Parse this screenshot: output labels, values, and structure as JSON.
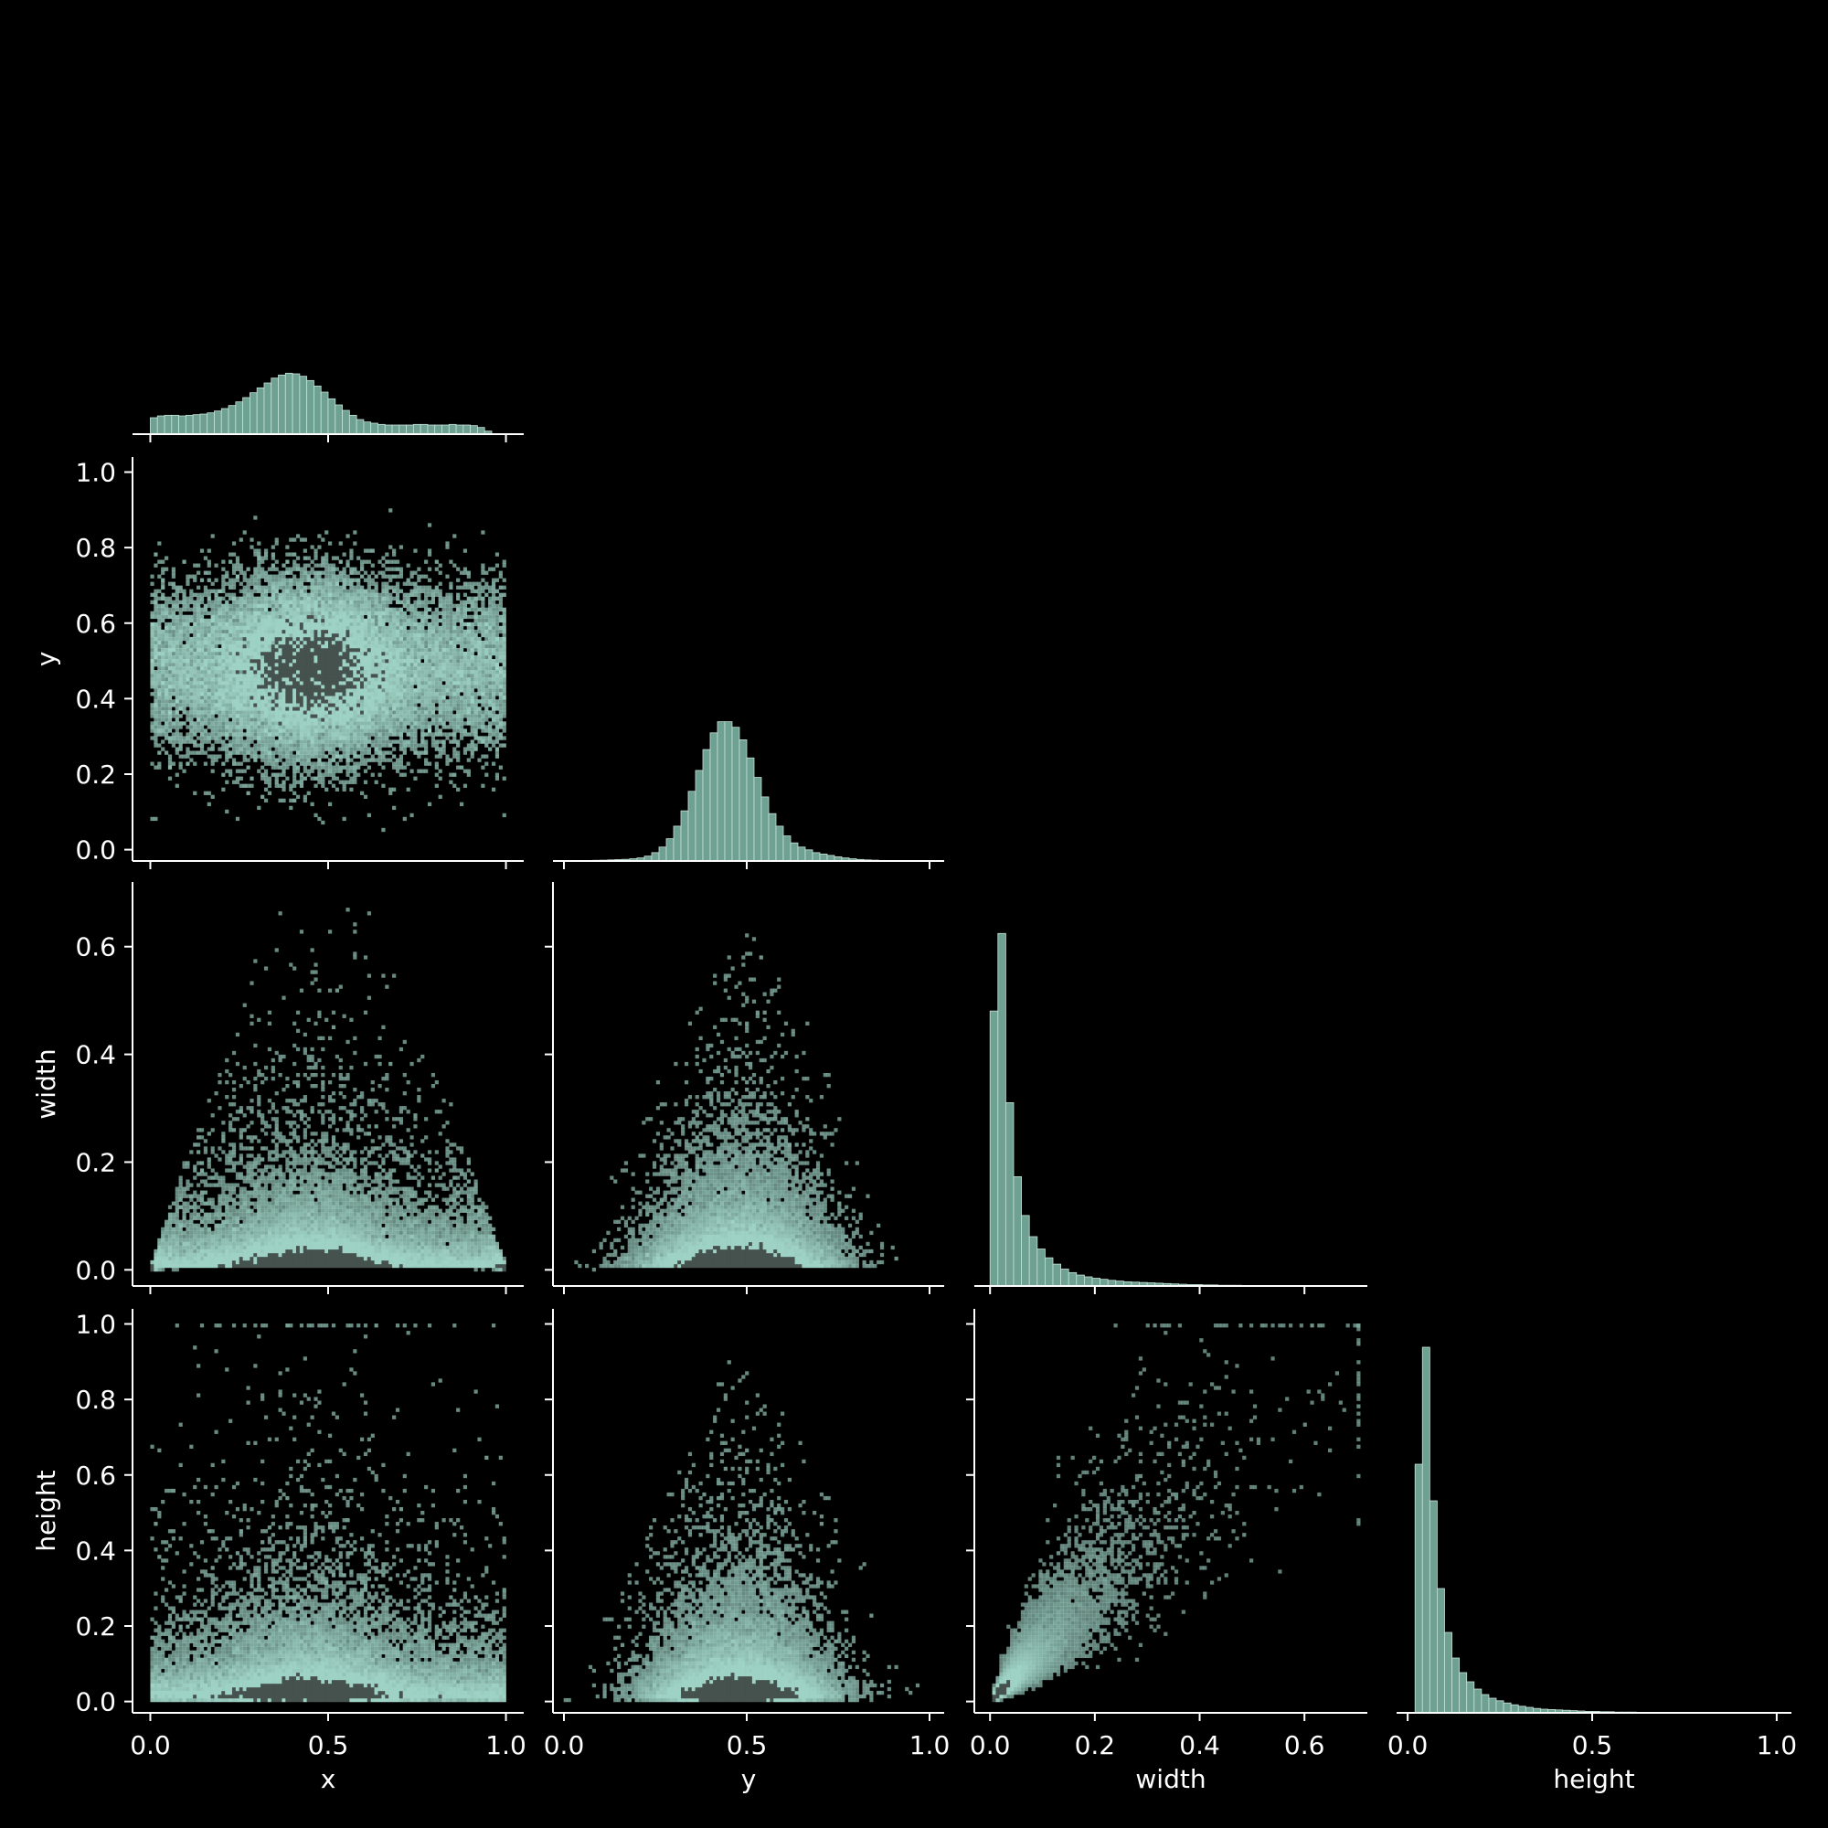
{
  "chart_data": {
    "type": "pairplot",
    "background": "#000000",
    "foreground": "#ffffff",
    "bar_color": "#6fa192",
    "bar_edge_color": "#c5e2d8",
    "density_color": "#9ed2c4",
    "density_dense_color": "#46524e",
    "variables": [
      "x",
      "y",
      "width",
      "height"
    ],
    "axis_labels": {
      "x": "x",
      "y": "y",
      "width": "width",
      "height": "height"
    },
    "ranges": {
      "x": [
        -0.05,
        1.05
      ],
      "y": [
        -0.03,
        1.04
      ],
      "width": [
        -0.03,
        0.72
      ],
      "height": [
        -0.03,
        1.04
      ]
    },
    "ticks": {
      "x": [
        {
          "value": 0.0,
          "label": "0.0"
        },
        {
          "value": 0.5,
          "label": "0.5"
        },
        {
          "value": 1.0,
          "label": "1.0"
        }
      ],
      "y": [
        {
          "value": 0.0,
          "label": "0.0"
        },
        {
          "value": 0.2,
          "label": "0.2"
        },
        {
          "value": 0.4,
          "label": "0.4"
        },
        {
          "value": 0.6,
          "label": "0.6"
        },
        {
          "value": 0.8,
          "label": "0.8"
        },
        {
          "value": 1.0,
          "label": "1.0"
        }
      ],
      "y_bottom": [
        {
          "value": 0.0,
          "label": "0.0"
        },
        {
          "value": 0.5,
          "label": "0.5"
        },
        {
          "value": 1.0,
          "label": "1.0"
        }
      ],
      "width": [
        {
          "value": 0.0,
          "label": "0.0"
        },
        {
          "value": 0.2,
          "label": "0.2"
        },
        {
          "value": 0.4,
          "label": "0.4"
        },
        {
          "value": 0.6,
          "label": "0.6"
        }
      ],
      "height": [
        {
          "value": 0.0,
          "label": "0.0"
        },
        {
          "value": 0.2,
          "label": "0.2"
        },
        {
          "value": 0.4,
          "label": "0.4"
        },
        {
          "value": 0.6,
          "label": "0.6"
        },
        {
          "value": 0.8,
          "label": "0.8"
        },
        {
          "value": 1.0,
          "label": "1.0"
        }
      ],
      "height_bottom": [
        {
          "value": 0.0,
          "label": "0.0"
        },
        {
          "value": 0.5,
          "label": "0.5"
        },
        {
          "value": 1.0,
          "label": "1.0"
        }
      ]
    },
    "diagonal_histograms": [
      {
        "variable": "x",
        "bin_start": 0.0,
        "bin_width": 0.02,
        "counts": [
          0.27,
          0.3,
          0.31,
          0.31,
          0.3,
          0.31,
          0.32,
          0.33,
          0.35,
          0.38,
          0.42,
          0.47,
          0.53,
          0.6,
          0.68,
          0.76,
          0.84,
          0.92,
          0.97,
          1.0,
          0.99,
          0.95,
          0.88,
          0.79,
          0.69,
          0.58,
          0.48,
          0.39,
          0.31,
          0.24,
          0.2,
          0.18,
          0.16,
          0.15,
          0.15,
          0.15,
          0.15,
          0.16,
          0.16,
          0.15,
          0.15,
          0.15,
          0.16,
          0.15,
          0.15,
          0.14,
          0.11,
          0.05
        ],
        "ylim": [
          0,
          1.05
        ]
      },
      {
        "variable": "y",
        "bin_start": 0.02,
        "bin_width": 0.02,
        "counts": [
          0.002,
          0.003,
          0.004,
          0.005,
          0.006,
          0.008,
          0.01,
          0.012,
          0.016,
          0.022,
          0.035,
          0.06,
          0.1,
          0.16,
          0.25,
          0.36,
          0.5,
          0.65,
          0.8,
          0.92,
          1.0,
          1.0,
          0.96,
          0.87,
          0.74,
          0.6,
          0.46,
          0.34,
          0.25,
          0.18,
          0.13,
          0.1,
          0.08,
          0.06,
          0.05,
          0.04,
          0.03,
          0.022,
          0.016,
          0.011,
          0.008,
          0.006,
          0.004,
          0.003,
          0.002,
          0.002,
          0.001,
          0.001
        ],
        "ylim": [
          0,
          1.05
        ]
      },
      {
        "variable": "width",
        "bin_start": 0.0,
        "bin_width": 0.015,
        "counts": [
          0.78,
          1.0,
          0.52,
          0.31,
          0.2,
          0.14,
          0.105,
          0.08,
          0.062,
          0.048,
          0.038,
          0.031,
          0.026,
          0.022,
          0.019,
          0.016,
          0.014,
          0.012,
          0.011,
          0.01,
          0.009,
          0.008,
          0.007,
          0.006,
          0.005,
          0.004,
          0.004,
          0.003,
          0.003,
          0.002,
          0.002,
          0.002,
          0.001,
          0.001,
          0.001,
          0.001,
          0.001,
          0.001,
          0.001,
          0.001
        ],
        "ylim": [
          0,
          1.05
        ]
      },
      {
        "variable": "height",
        "bin_start": 0.0,
        "bin_width": 0.02,
        "counts": [
          0.0,
          0.68,
          1.0,
          0.58,
          0.34,
          0.22,
          0.15,
          0.11,
          0.085,
          0.065,
          0.05,
          0.04,
          0.033,
          0.027,
          0.022,
          0.018,
          0.015,
          0.012,
          0.01,
          0.009,
          0.008,
          0.007,
          0.006,
          0.005,
          0.004,
          0.004,
          0.003,
          0.003,
          0.002,
          0.002,
          0.002,
          0.001,
          0.001,
          0.001,
          0.001,
          0.001,
          0.001
        ],
        "ylim": [
          0,
          1.05
        ]
      }
    ],
    "joint_panels": [
      {
        "x_var": "x",
        "y_var": "y",
        "description_shape": "uniform in x, normal-ish in y centered at 0.48",
        "density_peak": {
          "x": 0.45,
          "y": 0.48
        },
        "extent": {
          "x": [
            0.0,
            1.0
          ],
          "y": [
            0.0,
            1.0
          ]
        }
      },
      {
        "x_var": "x",
        "y_var": "width",
        "density_peak": {
          "x": 0.45,
          "y": 0.02
        },
        "envelope": [
          [
            0.0,
            0.0
          ],
          [
            0.33,
            0.67
          ],
          [
            0.67,
            0.67
          ],
          [
            1.0,
            0.0
          ]
        ]
      },
      {
        "x_var": "y",
        "y_var": "width",
        "density_peak": {
          "x": 0.48,
          "y": 0.02
        },
        "envelope": [
          [
            0.02,
            0.0
          ],
          [
            0.5,
            0.66
          ],
          [
            0.98,
            0.0
          ]
        ]
      },
      {
        "x_var": "x",
        "y_var": "height",
        "density_peak": {
          "x": 0.45,
          "y": 0.03
        },
        "extent": {
          "x": [
            0.0,
            1.0
          ],
          "y": [
            0.0,
            1.0
          ]
        }
      },
      {
        "x_var": "y",
        "y_var": "height",
        "density_peak": {
          "x": 0.48,
          "y": 0.03
        },
        "envelope": [
          [
            0.02,
            0.0
          ],
          [
            0.5,
            1.0
          ],
          [
            0.98,
            0.0
          ]
        ]
      },
      {
        "x_var": "width",
        "y_var": "height",
        "density_peak": {
          "x": 0.02,
          "y": 0.03
        },
        "correlation": "positive, fan-shaped"
      }
    ]
  }
}
